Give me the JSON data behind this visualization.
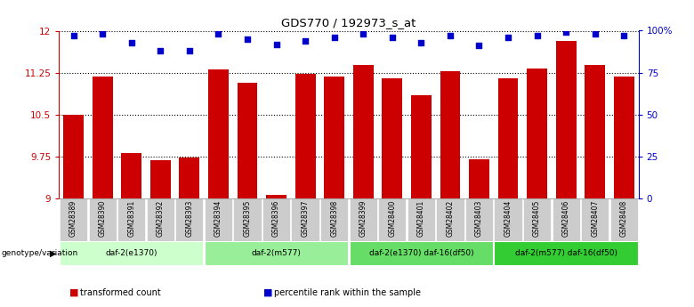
{
  "title": "GDS770 / 192973_s_at",
  "samples": [
    "GSM28389",
    "GSM28390",
    "GSM28391",
    "GSM28392",
    "GSM28393",
    "GSM28394",
    "GSM28395",
    "GSM28396",
    "GSM28397",
    "GSM28398",
    "GSM28399",
    "GSM28400",
    "GSM28401",
    "GSM28402",
    "GSM28403",
    "GSM28404",
    "GSM28405",
    "GSM28406",
    "GSM28407",
    "GSM28408"
  ],
  "bar_values": [
    10.5,
    11.18,
    9.8,
    9.68,
    9.72,
    11.3,
    11.06,
    9.06,
    11.22,
    11.18,
    11.38,
    11.15,
    10.85,
    11.28,
    9.7,
    11.14,
    11.32,
    11.82,
    11.38,
    11.18
  ],
  "percentile_values": [
    97,
    98,
    93,
    88,
    88,
    98,
    95,
    92,
    94,
    96,
    98,
    96,
    93,
    97,
    91,
    96,
    97,
    99,
    98,
    97
  ],
  "bar_color": "#cc0000",
  "percentile_color": "#0000cc",
  "ylim_left": [
    9.0,
    12.0
  ],
  "ylim_right": [
    0,
    100
  ],
  "yticks_left": [
    9.0,
    9.75,
    10.5,
    11.25,
    12.0
  ],
  "ytick_labels_left": [
    "9",
    "9.75",
    "10.5",
    "11.25",
    "12"
  ],
  "yticks_right": [
    0,
    25,
    50,
    75,
    100
  ],
  "ytick_labels_right": [
    "0",
    "25",
    "50",
    "75",
    "100%"
  ],
  "groups": [
    {
      "label": "daf-2(e1370)",
      "start": 0,
      "end": 5,
      "color": "#ccffcc"
    },
    {
      "label": "daf-2(m577)",
      "start": 5,
      "end": 10,
      "color": "#99ee99"
    },
    {
      "label": "daf-2(e1370) daf-16(df50)",
      "start": 10,
      "end": 15,
      "color": "#66dd66"
    },
    {
      "label": "daf-2(m577) daf-16(df50)",
      "start": 15,
      "end": 20,
      "color": "#33cc33"
    }
  ],
  "group_row_label": "genotype/variation",
  "legend_items": [
    {
      "color": "#cc0000",
      "label": "transformed count"
    },
    {
      "color": "#0000cc",
      "label": "percentile rank within the sample"
    }
  ],
  "left_tick_color": "#cc0000",
  "right_tick_color": "#0000cc",
  "bg_color": "#ffffff",
  "plot_bg_color": "#ffffff"
}
